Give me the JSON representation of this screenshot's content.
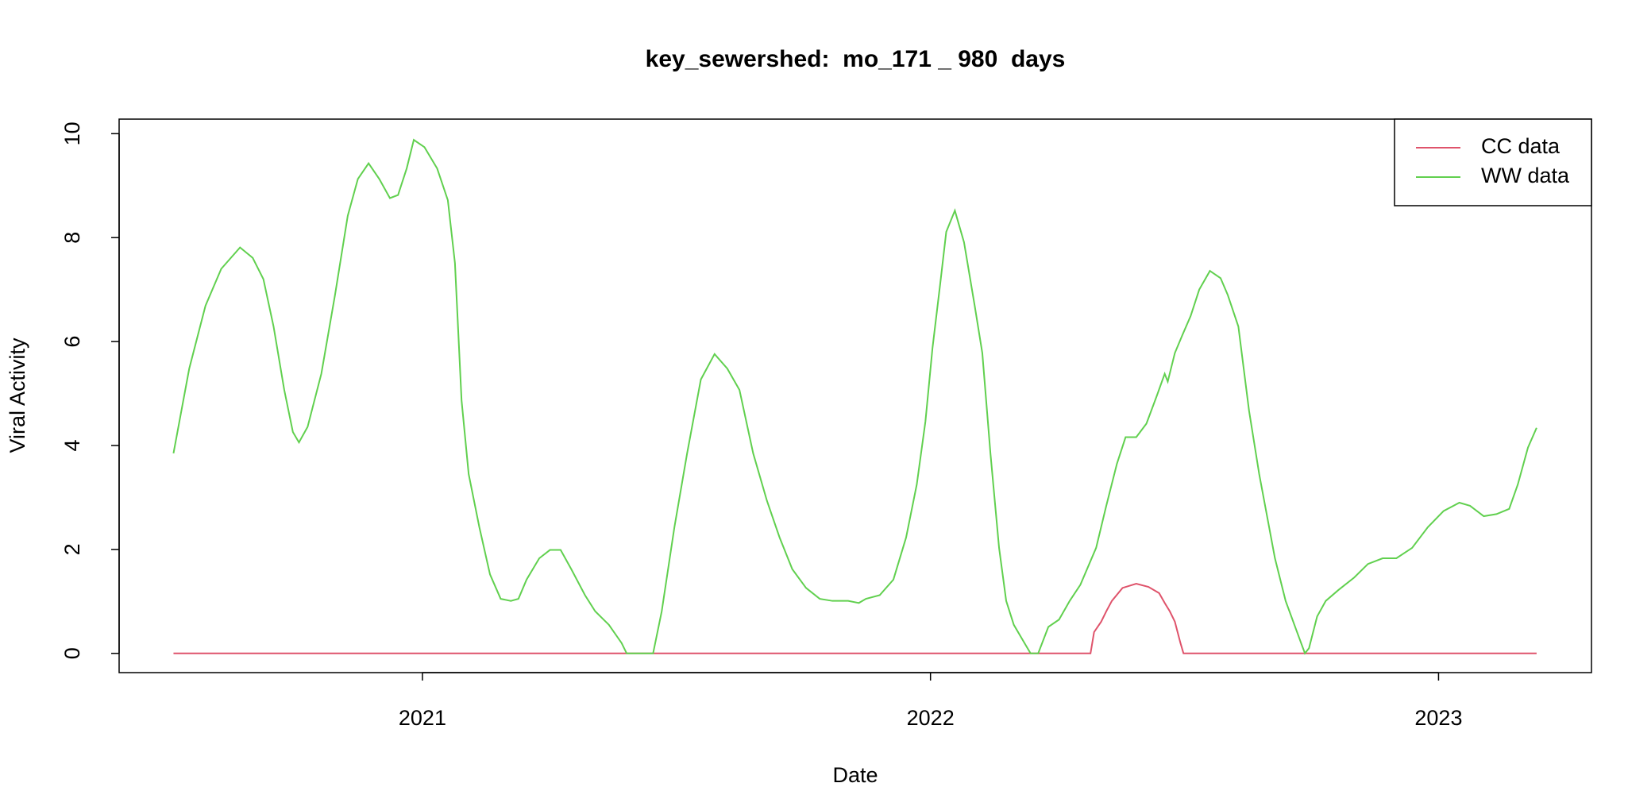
{
  "chart_data": {
    "type": "line",
    "title": "key_sewershed:  mo_171 _ 980  days",
    "x_label": "Date",
    "y_label": "Viral Activity",
    "xlim": [
      2020.403,
      2023.301
    ],
    "xticks": [
      2021,
      2022,
      2023
    ],
    "ylim": [
      -0.37,
      10.28
    ],
    "yticks": [
      0,
      2,
      4,
      6,
      8,
      10
    ],
    "legend": "top-right",
    "series": [
      {
        "name": "CC data",
        "color": "#DF536B",
        "x": [
          2020.51,
          2022.315,
          2022.322,
          2022.336,
          2022.346,
          2022.357,
          2022.378,
          2022.405,
          2022.429,
          2022.45,
          2022.461,
          2022.471,
          2022.481,
          2022.492,
          2022.498,
          2023.193
        ],
        "values": [
          0,
          0,
          0.41,
          0.61,
          0.81,
          1.01,
          1.26,
          1.34,
          1.28,
          1.16,
          0.97,
          0.81,
          0.61,
          0.2,
          0,
          0
        ]
      },
      {
        "name": "WW data",
        "color": "#61D04F",
        "x": [
          2020.51,
          2020.541,
          2020.573,
          2020.604,
          2020.641,
          2020.666,
          2020.687,
          2020.707,
          2020.728,
          2020.745,
          2020.757,
          2020.774,
          2020.801,
          2020.828,
          2020.853,
          2020.873,
          2020.894,
          2020.915,
          2020.936,
          2020.952,
          2020.969,
          2020.983,
          2021.004,
          2021.029,
          2021.05,
          2021.064,
          2021.077,
          2021.091,
          2021.112,
          2021.133,
          2021.154,
          2021.174,
          2021.189,
          2021.205,
          2021.23,
          2021.251,
          2021.272,
          2021.293,
          2021.32,
          2021.34,
          2021.367,
          2021.392,
          2021.402,
          2021.454,
          2021.471,
          2021.496,
          2021.521,
          2021.548,
          2021.575,
          2021.6,
          2021.624,
          2021.651,
          2021.678,
          2021.703,
          2021.728,
          2021.755,
          2021.782,
          2021.807,
          2021.838,
          2021.859,
          2021.873,
          2021.9,
          2021.927,
          2021.952,
          2021.973,
          2021.99,
          2022.004,
          2022.019,
          2022.031,
          2022.048,
          2022.066,
          2022.087,
          2022.102,
          2022.118,
          2022.135,
          2022.149,
          2022.164,
          2022.185,
          2022.197,
          2022.212,
          2022.232,
          2022.253,
          2022.274,
          2022.295,
          2022.326,
          2022.346,
          2022.367,
          2022.384,
          2022.405,
          2022.425,
          2022.446,
          2022.461,
          2022.467,
          2022.481,
          2022.496,
          2022.512,
          2022.529,
          2022.55,
          2022.571,
          2022.585,
          2022.606,
          2022.627,
          2022.647,
          2022.678,
          2022.699,
          2022.72,
          2022.737,
          2022.745,
          2022.761,
          2022.778,
          2022.803,
          2022.834,
          2022.861,
          2022.89,
          2022.917,
          2022.948,
          2022.979,
          2023.01,
          2023.041,
          2023.062,
          2023.089,
          2023.114,
          2023.139,
          2023.156,
          2023.176,
          2023.193
        ],
        "values": [
          3.85,
          5.48,
          6.69,
          7.4,
          7.81,
          7.61,
          7.2,
          6.29,
          5.07,
          4.26,
          4.06,
          4.36,
          5.38,
          6.9,
          8.42,
          9.13,
          9.43,
          9.13,
          8.76,
          8.82,
          9.33,
          9.88,
          9.74,
          9.33,
          8.72,
          7.51,
          4.87,
          3.45,
          2.43,
          1.52,
          1.05,
          1.01,
          1.05,
          1.42,
          1.83,
          1.99,
          1.99,
          1.62,
          1.12,
          0.81,
          0.55,
          0.2,
          0,
          0,
          0.81,
          2.43,
          3.85,
          5.27,
          5.76,
          5.48,
          5.07,
          3.85,
          2.94,
          2.23,
          1.62,
          1.26,
          1.05,
          1.01,
          1.01,
          0.97,
          1.05,
          1.12,
          1.42,
          2.23,
          3.25,
          4.46,
          5.88,
          7.1,
          8.11,
          8.52,
          7.91,
          6.69,
          5.78,
          3.85,
          2.03,
          1.01,
          0.55,
          0.2,
          0,
          0,
          0.51,
          0.65,
          1.01,
          1.32,
          2.03,
          2.84,
          3.65,
          4.16,
          4.16,
          4.42,
          4.97,
          5.38,
          5.23,
          5.78,
          6.13,
          6.49,
          7.0,
          7.36,
          7.22,
          6.9,
          6.29,
          4.67,
          3.45,
          1.83,
          1.01,
          0.45,
          0,
          0.1,
          0.71,
          1.01,
          1.22,
          1.46,
          1.72,
          1.83,
          1.83,
          2.03,
          2.43,
          2.74,
          2.9,
          2.84,
          2.64,
          2.68,
          2.78,
          3.25,
          3.96,
          4.34
        ]
      }
    ]
  }
}
